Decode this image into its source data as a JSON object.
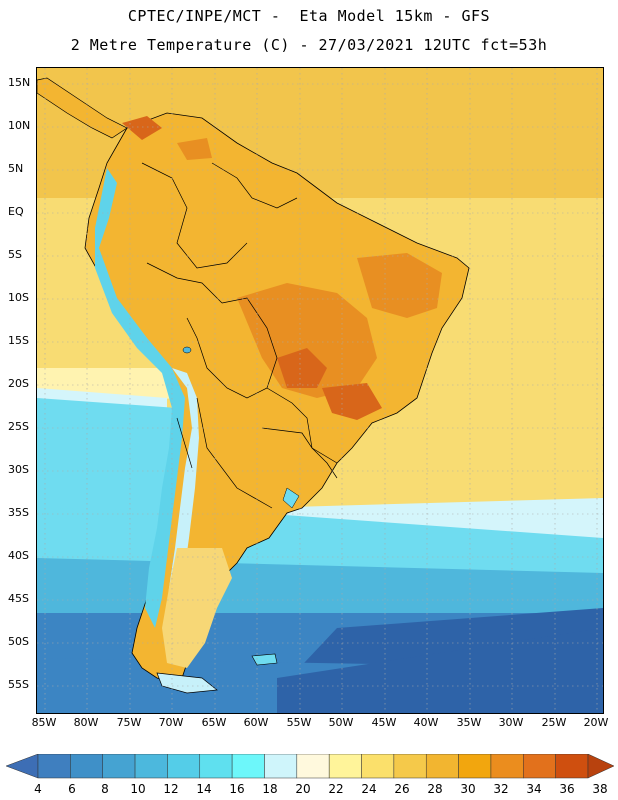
{
  "title_line1": "CPTEC/INPE/MCT -  Eta Model 15km - GFS",
  "title_line2": "2 Metre Temperature (C) - 27/03/2021 12UTC fct=53h",
  "variable": "2 Metre Temperature",
  "units": "C",
  "lat_labels": [
    "15N",
    "10N",
    "5N",
    "EQ",
    "5S",
    "10S",
    "15S",
    "20S",
    "25S",
    "30S",
    "35S",
    "40S",
    "45S",
    "50S",
    "55S"
  ],
  "lat_values": [
    15,
    10,
    5,
    0,
    -5,
    -10,
    -15,
    -20,
    -25,
    -30,
    -35,
    -40,
    -45,
    -50,
    -55
  ],
  "lon_labels": [
    "85W",
    "80W",
    "75W",
    "70W",
    "65W",
    "60W",
    "55W",
    "50W",
    "45W",
    "40W",
    "35W",
    "30W",
    "25W",
    "20W"
  ],
  "lon_values": [
    -85,
    -80,
    -75,
    -70,
    -65,
    -60,
    -55,
    -50,
    -45,
    -40,
    -35,
    -30,
    -25,
    -20
  ],
  "colorbar": {
    "levels": [
      "4",
      "6",
      "8",
      "10",
      "12",
      "14",
      "16",
      "18",
      "20",
      "22",
      "24",
      "26",
      "28",
      "30",
      "32",
      "34",
      "36",
      "38"
    ],
    "colors": [
      "#3d6eb5",
      "#3f7fbf",
      "#3f90c8",
      "#45a3d2",
      "#4cb8dd",
      "#54cde8",
      "#5fe0ef",
      "#6df7fa",
      "#cff5fb",
      "#fff9dd",
      "#fff49a",
      "#fbe06b",
      "#f5c94a",
      "#f2b530",
      "#f2a60e",
      "#eb8d1e",
      "#e2711c",
      "#cf4f0f",
      "#b8420e"
    ]
  },
  "map_colors": {
    "ocean_warm": "#f8dc73",
    "ocean_hot": "#f2c54c",
    "ocean_mild": "#fff3b0",
    "ocean_cool": "#d4f5fb",
    "ocean_cold": "#6fdcf0",
    "ocean_colder": "#4fb7dc",
    "ocean_coldest": "#3c85c3",
    "ocean_deep": "#2e63a8",
    "land_warm": "#f3b531",
    "land_hot": "#e88f22",
    "land_very_hot": "#d8661a",
    "andes_cold": "#5fd3ea",
    "andes_cool": "#c7f1fa",
    "patagonia": "#f7d776"
  }
}
